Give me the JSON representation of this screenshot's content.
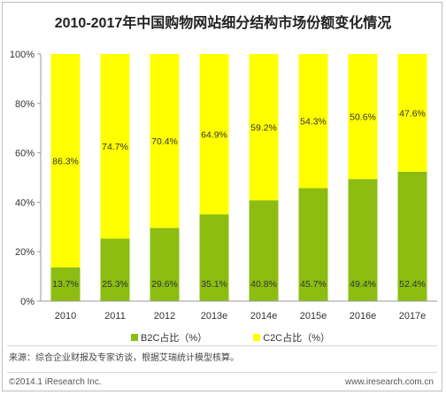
{
  "title": "2010-2017年中国购物网站细分结构市场份额变化情况",
  "legend": [
    {
      "label": "B2C占比（%）",
      "color": "#8cbd10"
    },
    {
      "label": "C2C占比（%）",
      "color": "#ffff00"
    }
  ],
  "source": "来源：综合企业财报及专家访谈，根据艾瑞统计模型核算。",
  "copyright": "©2014.1 iResearch Inc.",
  "url": "www.iresearch.com.cn",
  "chart_data": {
    "type": "bar",
    "stacked": true,
    "categories": [
      "2010",
      "2011",
      "2012",
      "2013e",
      "2014e",
      "2015e",
      "2016e",
      "2017e"
    ],
    "series": [
      {
        "name": "B2C占比（%）",
        "values": [
          13.7,
          25.3,
          29.6,
          35.1,
          40.8,
          45.7,
          49.4,
          52.4
        ],
        "color": "#8cbd10"
      },
      {
        "name": "C2C占比（%）",
        "values": [
          86.3,
          74.7,
          70.4,
          64.9,
          59.2,
          54.3,
          50.6,
          47.6
        ],
        "color": "#ffff00"
      }
    ],
    "value_suffix": "%",
    "y_ticks": [
      "0%",
      "20%",
      "40%",
      "60%",
      "80%",
      "100%"
    ],
    "ylim": [
      0,
      100
    ],
    "grid": false,
    "legend_position": "bottom"
  }
}
